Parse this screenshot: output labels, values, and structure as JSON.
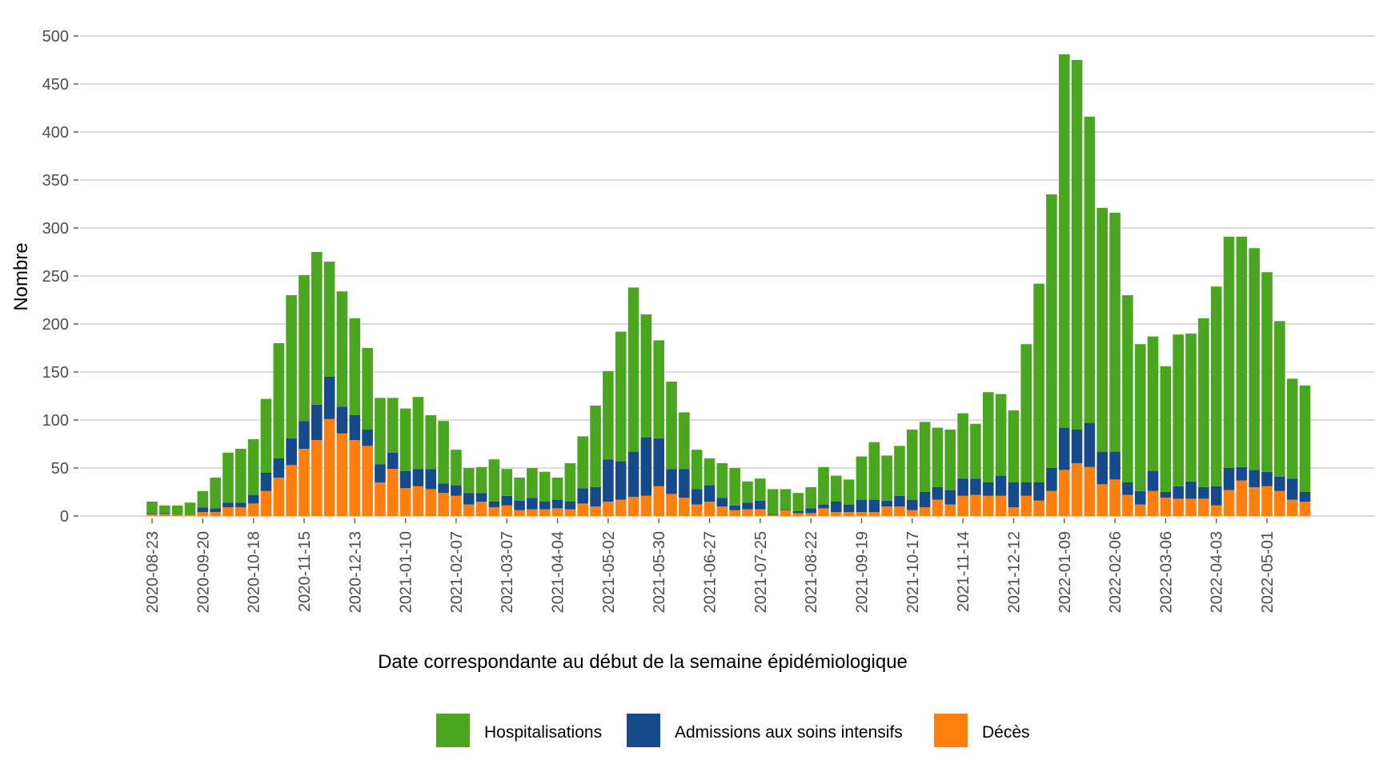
{
  "chart_data": {
    "type": "bar",
    "stacked": true,
    "title": "",
    "xlabel": "Date correspondante au début de la semaine épidémiologique",
    "ylabel": "Nombre",
    "ylim": [
      0,
      500
    ],
    "yticks": [
      0,
      50,
      100,
      150,
      200,
      250,
      300,
      350,
      400,
      450,
      500
    ],
    "grid": true,
    "legend_position": "bottom",
    "colors": {
      "Hospitalisations": "#4aa61f",
      "Admissions aux soins intensifs": "#174a8b",
      "Décès": "#ff7f0e"
    },
    "x_tick_labels": [
      "2020-08-23",
      "2020-09-20",
      "2020-10-18",
      "2020-11-15",
      "2020-12-13",
      "2021-01-10",
      "2021-02-07",
      "2021-03-07",
      "2021-04-04",
      "2021-05-02",
      "2021-05-30",
      "2021-06-27",
      "2021-07-25",
      "2021-08-22",
      "2021-09-19",
      "2021-10-17",
      "2021-11-14",
      "2021-12-12",
      "2022-01-09",
      "2022-02-06",
      "2022-03-06",
      "2022-04-03",
      "2022-05-01"
    ],
    "x_tick_positions": [
      0,
      4,
      8,
      12,
      16,
      20,
      24,
      28,
      32,
      36,
      40,
      44,
      48,
      52,
      56,
      60,
      64,
      68,
      72,
      76,
      80,
      84,
      88
    ],
    "x_week_start": "2020-08-23",
    "totals": [
      15,
      11,
      11,
      14,
      26,
      40,
      66,
      70,
      80,
      122,
      180,
      230,
      251,
      275,
      265,
      234,
      206,
      175,
      123,
      123,
      112,
      124,
      105,
      99,
      69,
      50,
      51,
      59,
      49,
      40,
      50,
      46,
      40,
      55,
      83,
      115,
      151,
      192,
      238,
      210,
      183,
      140,
      108,
      69,
      60,
      55,
      50,
      36,
      39,
      28,
      28,
      24,
      30,
      51,
      42,
      38,
      62,
      77,
      63,
      73,
      90,
      98,
      92,
      90,
      107,
      96,
      129,
      127,
      110,
      179,
      242,
      335,
      481,
      475,
      416,
      321,
      316,
      230,
      179,
      187,
      156,
      189,
      190,
      206,
      239,
      291,
      291,
      279,
      254,
      203,
      143,
      136
    ],
    "series": [
      {
        "name": "Décès",
        "values": [
          2,
          2,
          1,
          1,
          4,
          4,
          9,
          9,
          13,
          26,
          40,
          53,
          70,
          79,
          101,
          86,
          79,
          73,
          35,
          49,
          29,
          31,
          28,
          24,
          21,
          12,
          15,
          9,
          11,
          6,
          7,
          7,
          8,
          7,
          13,
          10,
          15,
          17,
          20,
          21,
          31,
          23,
          19,
          12,
          15,
          10,
          6,
          7,
          7,
          1,
          6,
          3,
          3,
          8,
          4,
          4,
          4,
          4,
          10,
          10,
          6,
          9,
          17,
          12,
          21,
          22,
          21,
          21,
          9,
          21,
          16,
          26,
          48,
          55,
          51,
          33,
          38,
          22,
          12,
          26,
          19,
          18,
          18,
          18,
          11,
          27,
          37,
          30,
          31,
          26,
          17,
          15
        ]
      },
      {
        "name": "Admissions aux soins intensifs",
        "values": [
          1,
          1,
          0,
          0,
          5,
          4,
          5,
          5,
          9,
          19,
          20,
          28,
          29,
          37,
          44,
          28,
          26,
          17,
          19,
          17,
          18,
          18,
          21,
          10,
          11,
          12,
          9,
          6,
          10,
          10,
          12,
          8,
          9,
          8,
          16,
          20,
          44,
          40,
          47,
          61,
          50,
          26,
          30,
          16,
          17,
          9,
          5,
          7,
          9,
          1,
          1,
          2,
          5,
          4,
          11,
          8,
          13,
          13,
          6,
          11,
          11,
          16,
          13,
          15,
          18,
          17,
          14,
          21,
          26,
          14,
          19,
          24,
          44,
          35,
          46,
          34,
          29,
          13,
          14,
          21,
          6,
          13,
          18,
          12,
          20,
          23,
          14,
          18,
          15,
          15,
          22,
          10
        ]
      },
      {
        "name": "Hospitalisations",
        "values": [
          12,
          8,
          10,
          13,
          17,
          32,
          52,
          56,
          58,
          77,
          120,
          149,
          152,
          159,
          120,
          120,
          101,
          85,
          69,
          57,
          65,
          75,
          56,
          65,
          37,
          26,
          27,
          44,
          28,
          24,
          31,
          31,
          23,
          40,
          54,
          85,
          92,
          135,
          171,
          128,
          102,
          91,
          59,
          41,
          28,
          36,
          39,
          22,
          23,
          26,
          21,
          19,
          22,
          39,
          27,
          26,
          45,
          60,
          47,
          52,
          73,
          73,
          62,
          63,
          68,
          57,
          94,
          85,
          75,
          144,
          207,
          285,
          389,
          385,
          319,
          254,
          249,
          195,
          153,
          140,
          131,
          158,
          154,
          176,
          208,
          241,
          240,
          231,
          208,
          162,
          104,
          111
        ]
      }
    ]
  }
}
